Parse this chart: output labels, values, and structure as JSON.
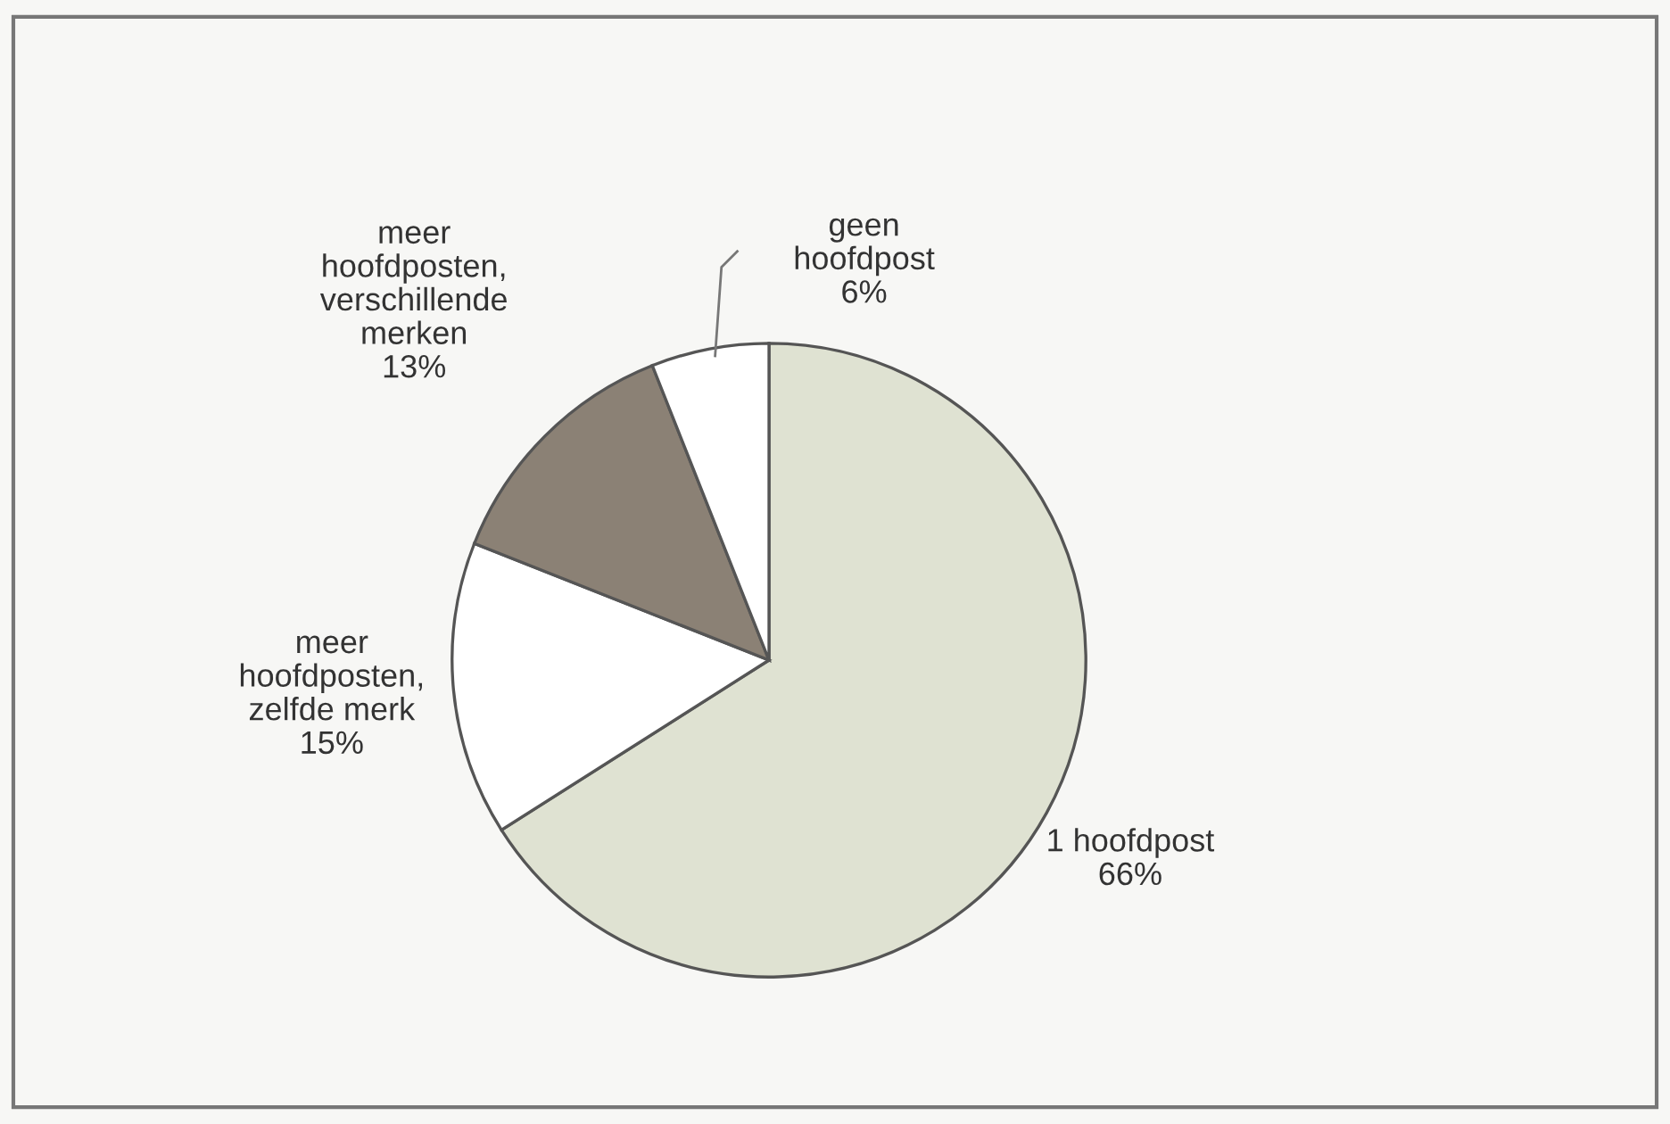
{
  "chart_data": {
    "type": "pie",
    "categories": [
      "1 hoofdpost",
      "meer\nhoofdposten,\nzelfde merk",
      "meer\nhoofdposten,\nverschillende\nmerken",
      "geen\nhoofdpost"
    ],
    "values": [
      66,
      15,
      13,
      6
    ],
    "value_labels": [
      "66%",
      "15%",
      "13%",
      "6%"
    ],
    "colors": [
      "#dfe2d2",
      "#ffffff",
      "#8b8175",
      "#ffffff"
    ]
  }
}
